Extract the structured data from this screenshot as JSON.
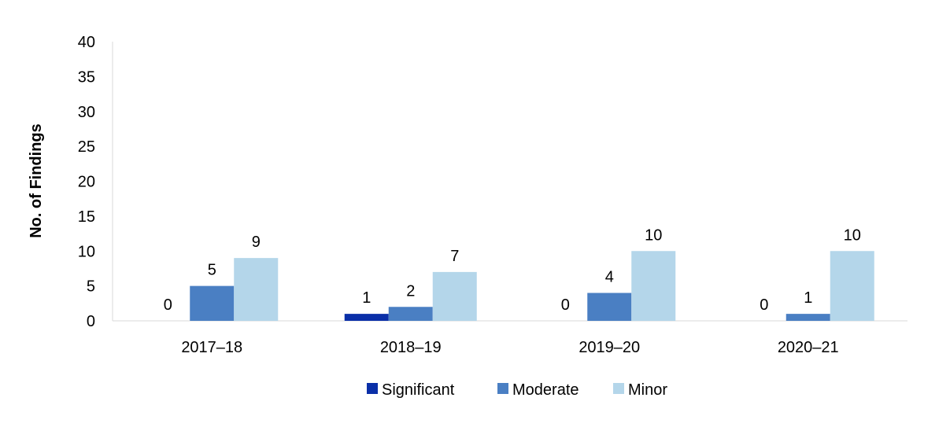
{
  "chart_data": {
    "type": "bar",
    "title": "",
    "xlabel": "",
    "ylabel": "No. of Findings",
    "ylim": [
      0,
      40
    ],
    "yticks": [
      0,
      5,
      10,
      15,
      20,
      25,
      30,
      35,
      40
    ],
    "categories": [
      "2017–18",
      "2018–19",
      "2019–20",
      "2020–21"
    ],
    "series": [
      {
        "name": "Significant",
        "values": [
          0,
          1,
          0,
          0
        ],
        "color": "#0a2fa8"
      },
      {
        "name": "Moderate",
        "values": [
          5,
          2,
          4,
          1
        ],
        "color": "#4a7fc3"
      },
      {
        "name": "Minor",
        "values": [
          9,
          7,
          10,
          10
        ],
        "color": "#b4d6ea"
      }
    ],
    "data_labels": true,
    "grid": false,
    "legend_position": "bottom"
  }
}
